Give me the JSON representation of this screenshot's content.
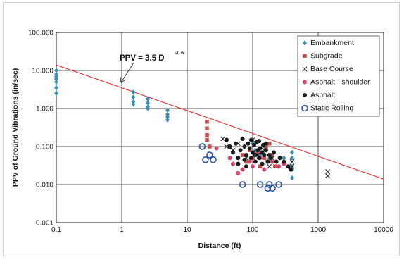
{
  "chart_data": {
    "type": "scatter",
    "x_scale": "log",
    "y_scale": "log",
    "xlim": [
      0.1,
      10000
    ],
    "ylim": [
      0.001,
      100
    ],
    "xlabel": "Distance (ft)",
    "ylabel": "PPV of Ground Vibrations (in/sec)",
    "x_ticks": [
      "0.1",
      "1",
      "10",
      "100",
      "1000",
      "10000"
    ],
    "y_ticks": [
      "0.001",
      "0.010",
      "0.100",
      "1.000",
      "10.000",
      "100.000"
    ],
    "grid": true,
    "legend_position": "right",
    "annotation": {
      "text": "PPV = 3.5 D",
      "exponent": "-0.6"
    },
    "fit_line": {
      "coefficient": 3.5,
      "exponent": -0.6,
      "color": "#e8292e"
    },
    "series": [
      {
        "name": "Embankment",
        "marker": "diamond",
        "color": "#3c8fb0",
        "points": [
          [
            0.1,
            10
          ],
          [
            0.1,
            8
          ],
          [
            0.1,
            7
          ],
          [
            0.1,
            6
          ],
          [
            0.1,
            5
          ],
          [
            0.1,
            3.5
          ],
          [
            0.1,
            2.5
          ],
          [
            1.5,
            2.7
          ],
          [
            1.5,
            2
          ],
          [
            1.5,
            1.5
          ],
          [
            1.5,
            1.3
          ],
          [
            2.5,
            1.8
          ],
          [
            2.5,
            1.4
          ],
          [
            2.5,
            1.1
          ],
          [
            2.5,
            1
          ],
          [
            5,
            0.9
          ],
          [
            5,
            0.7
          ],
          [
            5,
            0.6
          ],
          [
            5,
            0.5
          ],
          [
            100,
            0.12
          ],
          [
            110,
            0.08
          ],
          [
            130,
            0.06
          ],
          [
            150,
            0.1
          ],
          [
            180,
            0.05
          ],
          [
            200,
            0.04
          ],
          [
            250,
            0.03
          ],
          [
            300,
            0.05
          ],
          [
            350,
            0.03
          ],
          [
            400,
            0.07
          ],
          [
            400,
            0.05
          ],
          [
            400,
            0.03
          ],
          [
            400,
            0.025
          ],
          [
            400,
            0.015
          ]
        ]
      },
      {
        "name": "Subgrade",
        "marker": "square",
        "color": "#c0504d",
        "points": [
          [
            20,
            0.45
          ],
          [
            20,
            0.3
          ],
          [
            20,
            0.2
          ],
          [
            20,
            0.15
          ],
          [
            22,
            0.1
          ],
          [
            70,
            0.06
          ],
          [
            80,
            0.04
          ],
          [
            90,
            0.08
          ],
          [
            100,
            0.05
          ],
          [
            120,
            0.07
          ],
          [
            130,
            0.03
          ],
          [
            150,
            0.05
          ],
          [
            160,
            0.1
          ],
          [
            170,
            0.04
          ],
          [
            180,
            0.12
          ],
          [
            200,
            0.06
          ],
          [
            220,
            0.03
          ]
        ]
      },
      {
        "name": "Base Course",
        "marker": "x",
        "color": "#222222",
        "points": [
          [
            35,
            0.16
          ],
          [
            40,
            0.1
          ],
          [
            50,
            0.08
          ],
          [
            60,
            0.12
          ],
          [
            80,
            0.05
          ],
          [
            100,
            0.15
          ],
          [
            120,
            0.06
          ],
          [
            150,
            0.08
          ],
          [
            180,
            0.03
          ],
          [
            200,
            0.05
          ],
          [
            400,
            0.04
          ],
          [
            400,
            0.03
          ],
          [
            1400,
            0.022
          ],
          [
            1400,
            0.017
          ]
        ]
      },
      {
        "name": "Asphalt - shoulder",
        "marker": "circle",
        "color": "#d0436a",
        "points": [
          [
            28,
            0.09
          ],
          [
            45,
            0.05
          ],
          [
            50,
            0.035
          ],
          [
            60,
            0.02
          ],
          [
            70,
            0.025
          ],
          [
            90,
            0.04
          ],
          [
            100,
            0.03
          ],
          [
            130,
            0.05
          ],
          [
            150,
            0.025
          ],
          [
            200,
            0.04
          ],
          [
            250,
            0.03
          ],
          [
            300,
            0.035
          ]
        ]
      },
      {
        "name": "Asphalt",
        "marker": "circle",
        "color": "#1a1a1a",
        "points": [
          [
            40,
            0.15
          ],
          [
            45,
            0.1
          ],
          [
            50,
            0.07
          ],
          [
            55,
            0.12
          ],
          [
            60,
            0.05
          ],
          [
            65,
            0.08
          ],
          [
            70,
            0.16
          ],
          [
            75,
            0.1
          ],
          [
            80,
            0.06
          ],
          [
            85,
            0.12
          ],
          [
            90,
            0.09
          ],
          [
            95,
            0.05
          ],
          [
            100,
            0.07
          ],
          [
            105,
            0.11
          ],
          [
            110,
            0.06
          ],
          [
            115,
            0.13
          ],
          [
            120,
            0.08
          ],
          [
            125,
            0.05
          ],
          [
            130,
            0.09
          ],
          [
            140,
            0.07
          ],
          [
            145,
            0.11
          ],
          [
            150,
            0.06
          ],
          [
            160,
            0.08
          ],
          [
            170,
            0.04
          ],
          [
            180,
            0.06
          ],
          [
            190,
            0.05
          ],
          [
            210,
            0.07
          ],
          [
            230,
            0.04
          ],
          [
            260,
            0.05
          ],
          [
            300,
            0.04
          ],
          [
            350,
            0.03
          ],
          [
            380,
            0.025
          ],
          [
            60,
            0.035
          ],
          [
            80,
            0.03
          ],
          [
            110,
            0.04
          ],
          [
            140,
            0.035
          ],
          [
            75,
            0.045
          ],
          [
            95,
            0.15
          ],
          [
            125,
            0.14
          ],
          [
            160,
            0.12
          ]
        ]
      },
      {
        "name": "Static Rolling",
        "marker": "open-circle",
        "color": "#2a54a8",
        "points": [
          [
            17,
            0.1
          ],
          [
            19,
            0.045
          ],
          [
            22,
            0.06
          ],
          [
            25,
            0.045
          ],
          [
            70,
            0.01
          ],
          [
            130,
            0.01
          ],
          [
            170,
            0.008
          ],
          [
            180,
            0.01
          ],
          [
            200,
            0.008
          ],
          [
            250,
            0.01
          ]
        ]
      }
    ]
  }
}
